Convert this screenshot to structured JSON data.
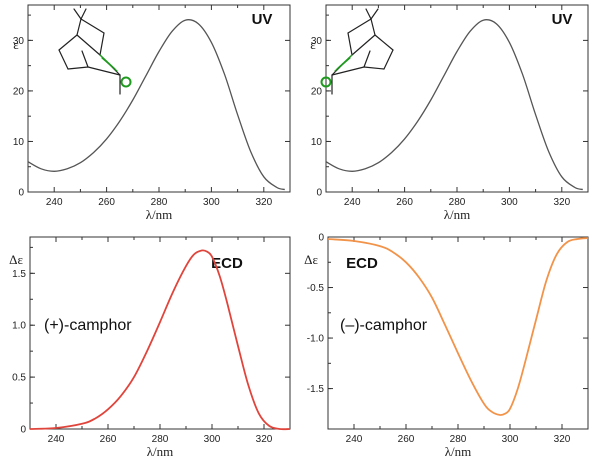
{
  "chart_data": [
    {
      "type": "line",
      "panel_label": "UV",
      "ylabel": "ε",
      "xlabel": "λ/nm",
      "xlim": [
        230,
        330
      ],
      "ylim": [
        0,
        37
      ],
      "xticks": [
        "240",
        "260",
        "280",
        "300",
        "320"
      ],
      "yticks": [
        "0",
        "10",
        "20",
        "30"
      ],
      "ytick_values": [
        0,
        10,
        20,
        30
      ],
      "line_color": "#555555",
      "molecule": "plus",
      "series": [
        {
          "x": [
            230,
            235,
            240,
            245,
            250,
            255,
            260,
            265,
            270,
            275,
            280,
            285,
            290,
            295,
            300,
            305,
            310,
            315,
            320,
            325,
            328
          ],
          "y": [
            6,
            4.6,
            4.1,
            4.6,
            5.8,
            7.8,
            10.5,
            14,
            18.2,
            23,
            27.8,
            31.8,
            34,
            33.3,
            29.6,
            23.3,
            15.3,
            8,
            3,
            0.9,
            0.5
          ]
        }
      ]
    },
    {
      "type": "line",
      "panel_label": "UV",
      "ylabel": "ε",
      "xlabel": "λ/nm",
      "xlim": [
        230,
        330
      ],
      "ylim": [
        0,
        37
      ],
      "xticks": [
        "240",
        "260",
        "280",
        "300",
        "320"
      ],
      "yticks": [
        "0",
        "10",
        "20",
        "30"
      ],
      "ytick_values": [
        0,
        10,
        20,
        30
      ],
      "line_color": "#555555",
      "molecule": "minus",
      "series": [
        {
          "x": [
            230,
            235,
            240,
            245,
            250,
            255,
            260,
            265,
            270,
            275,
            280,
            285,
            290,
            295,
            300,
            305,
            310,
            315,
            320,
            325,
            328
          ],
          "y": [
            6,
            4.6,
            4.1,
            4.6,
            5.8,
            7.8,
            10.5,
            14,
            18.2,
            23,
            27.8,
            31.8,
            34,
            33.3,
            29.6,
            23.3,
            15.3,
            8,
            3,
            0.9,
            0.5
          ]
        }
      ]
    },
    {
      "type": "line",
      "panel_label": "ECD",
      "ylabel": "Δε",
      "xlabel": "λ/nm",
      "xlim": [
        230,
        330
      ],
      "ylim": [
        0,
        1.85
      ],
      "xticks": [
        "240",
        "260",
        "280",
        "300",
        "320"
      ],
      "yticks": [
        "0",
        "0.5",
        "1.0",
        "1.5"
      ],
      "ytick_values": [
        0,
        0.5,
        1.0,
        1.5
      ],
      "annotation": "(+)-camphor",
      "line_color": "#e0453c",
      "series": [
        {
          "x": [
            230,
            240,
            250,
            255,
            260,
            265,
            270,
            275,
            280,
            285,
            290,
            293,
            296,
            298,
            300,
            303,
            306,
            310,
            314,
            318,
            322,
            326,
            330
          ],
          "y": [
            0,
            0.01,
            0.05,
            0.1,
            0.19,
            0.32,
            0.5,
            0.75,
            1.03,
            1.32,
            1.57,
            1.68,
            1.72,
            1.71,
            1.66,
            1.47,
            1.2,
            0.8,
            0.42,
            0.15,
            0.03,
            0,
            0
          ]
        }
      ]
    },
    {
      "type": "line",
      "panel_label": "ECD",
      "ylabel": "Δε",
      "xlabel": "λ/nm",
      "xlim": [
        230,
        330
      ],
      "ylim": [
        -1.9,
        0
      ],
      "xticks": [
        "240",
        "260",
        "280",
        "300",
        "320"
      ],
      "yticks": [
        "0",
        "-0.5",
        "-1.0",
        "-1.5"
      ],
      "ytick_values": [
        0,
        -0.5,
        -1.0,
        -1.5
      ],
      "annotation": "(–)-camphor",
      "line_color": "#f2934a",
      "series": [
        {
          "x": [
            230,
            240,
            250,
            255,
            260,
            265,
            270,
            275,
            280,
            285,
            290,
            293,
            296,
            298,
            300,
            303,
            306,
            310,
            314,
            318,
            322,
            326,
            330
          ],
          "y": [
            -0.02,
            -0.04,
            -0.09,
            -0.15,
            -0.25,
            -0.4,
            -0.6,
            -0.87,
            -1.15,
            -1.42,
            -1.65,
            -1.73,
            -1.76,
            -1.75,
            -1.7,
            -1.5,
            -1.22,
            -0.82,
            -0.43,
            -0.17,
            -0.05,
            -0.02,
            -0.01
          ]
        }
      ]
    }
  ]
}
